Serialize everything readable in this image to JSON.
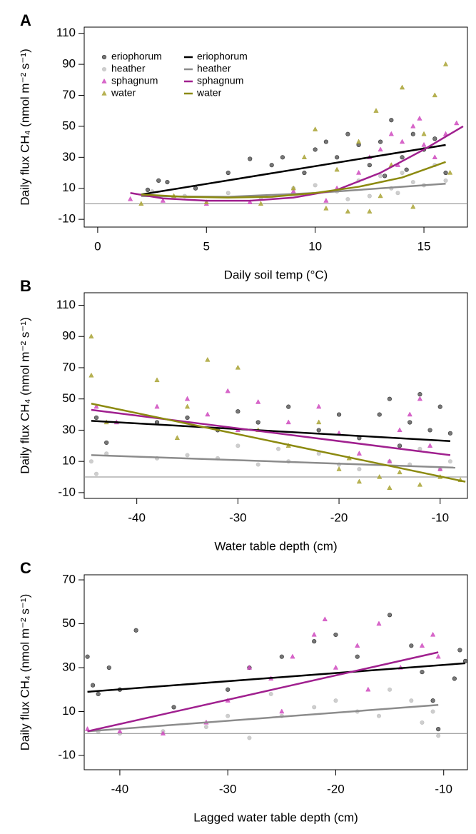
{
  "chart_data": [
    {
      "type": "scatter",
      "panel": "A",
      "x_label": "Daily soil temp (°C)",
      "y_label": "Daily flux CH₄ (nmol m⁻² s⁻¹)",
      "xlim": [
        -0.62,
        17
      ],
      "ylim": [
        -15,
        114
      ],
      "xticks": [
        0,
        5,
        10,
        15
      ],
      "yticks": [
        -10,
        10,
        30,
        50,
        70,
        90,
        110
      ],
      "zero_line": 0,
      "legend": true,
      "series": [
        {
          "name": "eriophorum",
          "color": "#4a4a4a",
          "marker": "circle",
          "x": [
            2.3,
            2.8,
            3.2,
            4.5,
            6,
            7,
            8,
            8.5,
            9.5,
            10,
            10.5,
            11,
            11.5,
            12,
            12.5,
            13,
            13.5,
            14,
            14.5,
            15,
            15.5,
            16,
            13.2,
            14.2
          ],
          "y": [
            9,
            15,
            14,
            10,
            20,
            29,
            25,
            30,
            20,
            35,
            40,
            30,
            45,
            38,
            25,
            40,
            54,
            30,
            45,
            35,
            42,
            20,
            18,
            22
          ]
        },
        {
          "name": "heather",
          "color": "#bdbdbd",
          "marker": "circle",
          "x": [
            2.5,
            4,
            6,
            7.5,
            9,
            10,
            11,
            12,
            12.5,
            13,
            13.5,
            14,
            14.5,
            15,
            15.5,
            16,
            11.5,
            13.8
          ],
          "y": [
            8,
            5,
            7,
            4,
            10,
            12,
            8,
            15,
            5,
            18,
            10,
            20,
            14,
            12,
            25,
            15,
            3,
            7
          ]
        },
        {
          "name": "sphagnum",
          "color": "#d04cc0",
          "marker": "triangle",
          "x": [
            1.5,
            3,
            5,
            7,
            9,
            10.5,
            11,
            12,
            12.5,
            13,
            13.5,
            14,
            14.5,
            15,
            15.5,
            16,
            16.5,
            13.8,
            14.8
          ],
          "y": [
            3,
            2,
            0,
            1,
            8,
            2,
            10,
            20,
            30,
            35,
            45,
            40,
            50,
            38,
            30,
            45,
            52,
            25,
            55
          ]
        },
        {
          "name": "water",
          "color": "#aaa436",
          "marker": "triangle",
          "x": [
            2,
            3.5,
            5,
            7.5,
            9,
            10,
            10.5,
            11,
            11.5,
            12,
            12.5,
            13,
            13.5,
            14,
            14.5,
            15,
            15.5,
            16,
            16.2,
            12.8,
            9.5
          ],
          "y": [
            0,
            5,
            1,
            0,
            10,
            48,
            -3,
            22,
            -5,
            40,
            -5,
            5,
            25,
            75,
            -2,
            45,
            70,
            90,
            20,
            60,
            30
          ]
        }
      ],
      "fits": [
        {
          "name": "eriophorum",
          "color": "#000000",
          "x": [
            2,
            16
          ],
          "y": [
            6,
            38
          ]
        },
        {
          "name": "heather",
          "color": "#8c8c8c",
          "x": [
            2,
            6,
            10,
            13,
            16
          ],
          "y": [
            5,
            4.5,
            7,
            10,
            13
          ]
        },
        {
          "name": "sphagnum",
          "color": "#a0208f",
          "x": [
            1.5,
            3,
            5,
            7,
            9,
            11,
            13,
            15,
            16.8
          ],
          "y": [
            7,
            3.5,
            2,
            2,
            4,
            9,
            20,
            35,
            50
          ]
        },
        {
          "name": "water",
          "color": "#8c8a10",
          "x": [
            2,
            4,
            6,
            8,
            10,
            12,
            14,
            16
          ],
          "y": [
            6,
            4.5,
            4,
            4.5,
            7,
            11,
            17,
            27
          ]
        }
      ]
    },
    {
      "type": "scatter",
      "panel": "B",
      "x_label": "Water table depth (cm)",
      "y_label": "Daily flux CH₄ (nmol m⁻² s⁻¹)",
      "xlim": [
        -45.2,
        -7.3
      ],
      "ylim": [
        -13.7,
        118
      ],
      "xticks": [
        -40,
        -30,
        -20,
        -10
      ],
      "yticks": [
        -10,
        10,
        30,
        50,
        70,
        90,
        110
      ],
      "zero_line": 0,
      "legend": false,
      "series": [
        {
          "color": "#4a4a4a",
          "marker": "circle",
          "x": [
            -44,
            -43,
            -38,
            -35,
            -30,
            -28,
            -25,
            -22,
            -20,
            -18,
            -15,
            -14,
            -13,
            -12,
            -11,
            -10,
            -9,
            -16,
            -32
          ],
          "y": [
            38,
            22,
            35,
            38,
            42,
            35,
            45,
            30,
            40,
            25,
            50,
            20,
            35,
            53,
            30,
            45,
            28,
            40,
            30
          ]
        },
        {
          "color": "#bdbdbd",
          "marker": "circle",
          "x": [
            -44.5,
            -44,
            -43,
            -38,
            -35,
            -32,
            -30,
            -28,
            -25,
            -22,
            -20,
            -18,
            -15,
            -13,
            -12,
            -10,
            -9,
            -26
          ],
          "y": [
            10,
            2,
            15,
            12,
            14,
            12,
            20,
            8,
            10,
            15,
            8,
            5,
            10,
            8,
            18,
            5,
            10,
            18
          ]
        },
        {
          "color": "#d04cc0",
          "marker": "triangle",
          "x": [
            -44,
            -42,
            -38,
            -35,
            -33,
            -30,
            -28,
            -25,
            -22,
            -20,
            -18,
            -15,
            -13,
            -12,
            -11,
            -10,
            -14,
            -31
          ],
          "y": [
            45,
            35,
            45,
            50,
            40,
            30,
            48,
            35,
            45,
            28,
            15,
            10,
            40,
            50,
            20,
            5,
            30,
            55
          ]
        },
        {
          "color": "#aaa436",
          "marker": "triangle",
          "x": [
            -44.5,
            -44.5,
            -43,
            -38,
            -35,
            -33,
            -30,
            -28,
            -25,
            -22,
            -20,
            -18,
            -16,
            -15,
            -14,
            -12,
            -10,
            -8,
            -36,
            -19
          ],
          "y": [
            90,
            65,
            35,
            62,
            45,
            75,
            70,
            30,
            20,
            35,
            5,
            -3,
            0,
            -7,
            3,
            -5,
            0,
            -2,
            25,
            12
          ]
        }
      ],
      "fits": [
        {
          "color": "#000000",
          "x": [
            -44.5,
            -9
          ],
          "y": [
            36,
            23
          ]
        },
        {
          "color": "#8c8c8c",
          "x": [
            -44.5,
            -8.5
          ],
          "y": [
            14,
            6
          ]
        },
        {
          "color": "#a0208f",
          "x": [
            -44.5,
            -9
          ],
          "y": [
            43,
            14
          ]
        },
        {
          "color": "#8c8a10",
          "x": [
            -44.5,
            -7.5
          ],
          "y": [
            47,
            -3
          ]
        }
      ]
    },
    {
      "type": "scatter",
      "panel": "C",
      "x_label": "Lagged water table depth (cm)",
      "y_label": "Daily flux CH₄ (nmol m⁻² s⁻¹)",
      "xlim": [
        -43.3,
        -7.8
      ],
      "ylim": [
        -16.5,
        72.3
      ],
      "xticks": [
        -40,
        -30,
        -20,
        -10
      ],
      "yticks": [
        -10,
        10,
        30,
        50,
        70
      ],
      "zero_line": 0,
      "legend": false,
      "series": [
        {
          "color": "#4a4a4a",
          "marker": "circle",
          "x": [
            -43,
            -42.5,
            -42,
            -40,
            -38.5,
            -41,
            -30,
            -28,
            -25,
            -22,
            -20,
            -18,
            -15,
            -13,
            -12,
            -11,
            -10.5,
            -9,
            -8.5,
            -8,
            -35
          ],
          "y": [
            35,
            22,
            18,
            20,
            47,
            30,
            20,
            30,
            35,
            42,
            45,
            35,
            54,
            40,
            28,
            15,
            2,
            25,
            38,
            33,
            12
          ]
        },
        {
          "color": "#bdbdbd",
          "marker": "circle",
          "x": [
            -42,
            -40,
            -36,
            -32,
            -30,
            -28,
            -25,
            -22,
            -20,
            -18,
            -15,
            -13,
            -12,
            -11,
            -10.5,
            -26,
            -16
          ],
          "y": [
            1,
            0,
            1,
            3,
            8,
            -2,
            8,
            12,
            15,
            10,
            20,
            15,
            5,
            10,
            -1,
            18,
            8
          ]
        },
        {
          "color": "#d04cc0",
          "marker": "triangle",
          "x": [
            -43,
            -40,
            -36,
            -32,
            -30,
            -28,
            -26,
            -24,
            -22,
            -21,
            -20,
            -18,
            -16,
            -14,
            -12,
            -11,
            -10.5,
            -25,
            -17
          ],
          "y": [
            2,
            1,
            0,
            5,
            15,
            30,
            25,
            35,
            45,
            52,
            30,
            40,
            50,
            30,
            40,
            45,
            35,
            10,
            20
          ]
        }
      ],
      "fits": [
        {
          "color": "#000000",
          "x": [
            -43,
            -8
          ],
          "y": [
            19,
            32
          ]
        },
        {
          "color": "#8c8c8c",
          "x": [
            -43,
            -10.5
          ],
          "y": [
            1,
            13
          ]
        },
        {
          "color": "#a0208f",
          "x": [
            -43,
            -10.5
          ],
          "y": [
            1,
            37
          ]
        }
      ]
    }
  ]
}
